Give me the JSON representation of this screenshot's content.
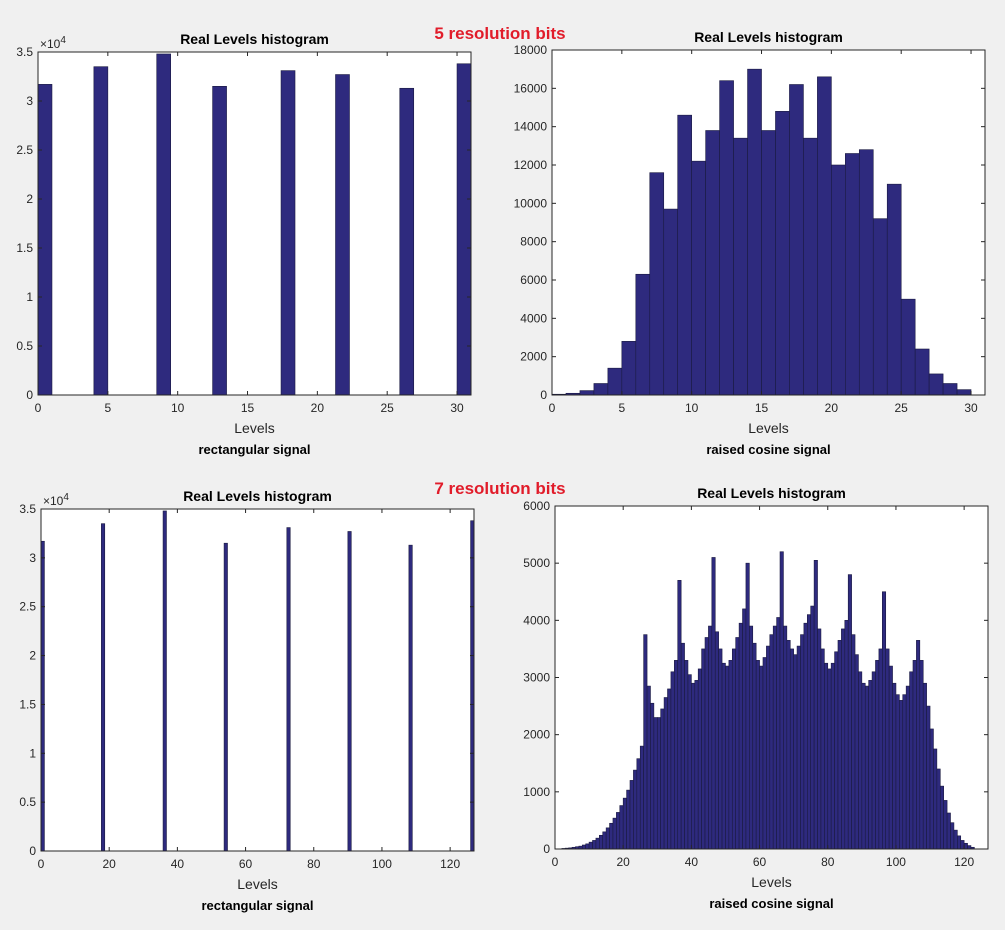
{
  "figure": {
    "headers": [
      {
        "text": "5 resolution bits",
        "color": "#e11c2a"
      },
      {
        "text": "7 resolution bits",
        "color": "#e11c2a"
      }
    ],
    "bar_color": "#2e2a7e",
    "bar_edge": "#1a1a40"
  },
  "chart_data": [
    {
      "type": "bar",
      "title": "Real Levels histogram",
      "xlabel": "Levels",
      "caption": "rectangular signal",
      "xlim": [
        0,
        31
      ],
      "ylim": [
        0,
        35000
      ],
      "xticks": [
        0,
        5,
        10,
        15,
        20,
        25,
        30
      ],
      "yticks": [
        0,
        5000,
        10000,
        15000,
        20000,
        25000,
        30000,
        35000
      ],
      "ytick_labels": [
        "0",
        "0.5",
        "1",
        "1.5",
        "2",
        "2.5",
        "3",
        "3.5"
      ],
      "yexponent": "×10^4",
      "bar_width": 1,
      "x": [
        0.5,
        4.5,
        9,
        13,
        17.9,
        21.8,
        26.4,
        30.5
      ],
      "values": [
        31700,
        33500,
        34800,
        31500,
        33100,
        32700,
        31300,
        33800
      ]
    },
    {
      "type": "bar",
      "title": "Real Levels histogram",
      "xlabel": "Levels",
      "caption": "raised cosine signal",
      "xlim": [
        0,
        31
      ],
      "ylim": [
        0,
        18000
      ],
      "xticks": [
        0,
        5,
        10,
        15,
        20,
        25,
        30
      ],
      "yticks": [
        0,
        2000,
        4000,
        6000,
        8000,
        10000,
        12000,
        14000,
        16000,
        18000
      ],
      "ytick_labels": [
        "0",
        "2000",
        "4000",
        "6000",
        "8000",
        "10000",
        "12000",
        "14000",
        "16000",
        "18000"
      ],
      "bar_width": 1,
      "x": [
        0.5,
        1.5,
        2.5,
        3.5,
        4.5,
        5.5,
        6.5,
        7.5,
        8.5,
        9.5,
        10.5,
        11.5,
        12.5,
        13.5,
        14.5,
        15.5,
        16.5,
        17.5,
        18.5,
        19.5,
        20.5,
        21.5,
        22.5,
        23.5,
        24.5,
        25.5,
        26.5,
        27.5,
        28.5,
        29.5
      ],
      "values": [
        40,
        90,
        230,
        600,
        1400,
        2800,
        6300,
        11600,
        9700,
        14600,
        12200,
        13800,
        16400,
        13400,
        17000,
        13800,
        14800,
        16200,
        13400,
        16600,
        12000,
        12600,
        12800,
        9200,
        11000,
        5000,
        2400,
        1100,
        600,
        280
      ]
    },
    {
      "type": "bar",
      "title": "Real Levels histogram",
      "xlabel": "Levels",
      "caption": "rectangular signal",
      "xlim": [
        0,
        127
      ],
      "ylim": [
        0,
        35000
      ],
      "xticks": [
        0,
        20,
        40,
        60,
        80,
        100,
        120
      ],
      "yticks": [
        0,
        5000,
        10000,
        15000,
        20000,
        25000,
        30000,
        35000
      ],
      "ytick_labels": [
        "0",
        "0.5",
        "1",
        "1.5",
        "2",
        "2.5",
        "3",
        "3.5"
      ],
      "yexponent": "×10^4",
      "bar_width": 1,
      "x": [
        0.5,
        18.2,
        36.3,
        54.2,
        72.6,
        90.5,
        108.4,
        126.5
      ],
      "values": [
        31700,
        33500,
        34800,
        31500,
        33100,
        32700,
        31300,
        33800
      ]
    },
    {
      "type": "bar",
      "title": "Real Levels histogram",
      "xlabel": "Levels",
      "caption": "raised cosine signal",
      "xlim": [
        0,
        127
      ],
      "ylim": [
        0,
        6000
      ],
      "xticks": [
        0,
        20,
        40,
        60,
        80,
        100,
        120
      ],
      "yticks": [
        0,
        1000,
        2000,
        3000,
        4000,
        5000,
        6000
      ],
      "ytick_labels": [
        "0",
        "1000",
        "2000",
        "3000",
        "4000",
        "5000",
        "6000"
      ],
      "bar_width": 1,
      "x": [
        2.5,
        3.5,
        4.5,
        5.5,
        6.5,
        7.5,
        8.5,
        9.5,
        10.5,
        11.5,
        12.5,
        13.5,
        14.5,
        15.5,
        16.5,
        17.5,
        18.5,
        19.5,
        20.5,
        21.5,
        22.5,
        23.5,
        24.5,
        25.5,
        26.5,
        27.5,
        28.5,
        29.5,
        30.5,
        31.5,
        32.5,
        33.5,
        34.5,
        35.5,
        36.5,
        37.5,
        38.5,
        39.5,
        40.5,
        41.5,
        42.5,
        43.5,
        44.5,
        45.5,
        46.5,
        47.5,
        48.5,
        49.5,
        50.5,
        51.5,
        52.5,
        53.5,
        54.5,
        55.5,
        56.5,
        57.5,
        58.5,
        59.5,
        60.5,
        61.5,
        62.5,
        63.5,
        64.5,
        65.5,
        66.5,
        67.5,
        68.5,
        69.5,
        70.5,
        71.5,
        72.5,
        73.5,
        74.5,
        75.5,
        76.5,
        77.5,
        78.5,
        79.5,
        80.5,
        81.5,
        82.5,
        83.5,
        84.5,
        85.5,
        86.5,
        87.5,
        88.5,
        89.5,
        90.5,
        91.5,
        92.5,
        93.5,
        94.5,
        95.5,
        96.5,
        97.5,
        98.5,
        99.5,
        100.5,
        101.5,
        102.5,
        103.5,
        104.5,
        105.5,
        106.5,
        107.5,
        108.5,
        109.5,
        110.5,
        111.5,
        112.5,
        113.5,
        114.5,
        115.5,
        116.5,
        117.5,
        118.5,
        119.5,
        120.5,
        121.5,
        122.5
      ],
      "values": [
        10,
        15,
        20,
        30,
        40,
        50,
        70,
        90,
        120,
        150,
        190,
        240,
        300,
        370,
        450,
        540,
        640,
        760,
        890,
        1030,
        1200,
        1380,
        1580,
        1800,
        3750,
        2850,
        2550,
        2300,
        2300,
        2450,
        2650,
        2800,
        3100,
        3300,
        4700,
        3600,
        3300,
        3050,
        2900,
        2950,
        3150,
        3500,
        3700,
        3900,
        5100,
        3800,
        3500,
        3250,
        3200,
        3300,
        3500,
        3700,
        3950,
        4200,
        5000,
        3900,
        3600,
        3300,
        3200,
        3350,
        3550,
        3750,
        3900,
        4050,
        5200,
        3900,
        3650,
        3500,
        3400,
        3550,
        3750,
        3950,
        4100,
        4250,
        5050,
        3850,
        3500,
        3250,
        3150,
        3250,
        3450,
        3650,
        3850,
        4000,
        4800,
        3750,
        3400,
        3100,
        2900,
        2850,
        2950,
        3100,
        3300,
        3500,
        4500,
        3500,
        3200,
        2900,
        2700,
        2600,
        2700,
        2850,
        3100,
        3300,
        3650,
        3300,
        2900,
        2500,
        2100,
        1750,
        1400,
        1100,
        850,
        630,
        460,
        330,
        230,
        150,
        100,
        60,
        30
      ]
    }
  ]
}
